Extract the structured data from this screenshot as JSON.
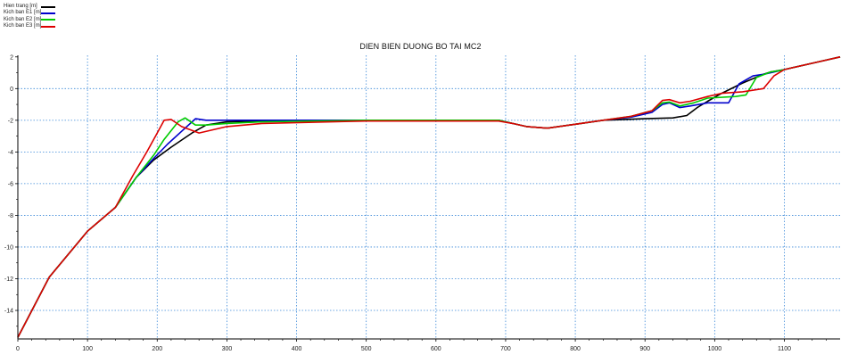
{
  "chart_data": {
    "type": "line",
    "title": "DIEN BIEN DUONG BO TAI MC2",
    "xlabel": "",
    "ylabel": "",
    "xlim": [
      0,
      1180
    ],
    "ylim": [
      -15.8,
      2.1
    ],
    "x_ticks": [
      0,
      100,
      200,
      300,
      400,
      500,
      600,
      700,
      800,
      900,
      1000,
      1100
    ],
    "y_ticks": [
      2,
      0,
      -2,
      -4,
      -6,
      -8,
      -10,
      -12,
      -14
    ],
    "grid": true,
    "legend_position": "top-left",
    "series": [
      {
        "name": "Hien trang  [m]",
        "color": "#000000",
        "points": [
          [
            0,
            -15.7
          ],
          [
            45,
            -11.9
          ],
          [
            100,
            -9.0
          ],
          [
            140,
            -7.5
          ],
          [
            170,
            -5.6
          ],
          [
            195,
            -4.5
          ],
          [
            220,
            -3.7
          ],
          [
            250,
            -2.8
          ],
          [
            270,
            -2.3
          ],
          [
            300,
            -2.1
          ],
          [
            350,
            -2.05
          ],
          [
            500,
            -2.0
          ],
          [
            690,
            -2.0
          ],
          [
            710,
            -2.2
          ],
          [
            730,
            -2.4
          ],
          [
            760,
            -2.5
          ],
          [
            800,
            -2.25
          ],
          [
            840,
            -2.0
          ],
          [
            900,
            -1.9
          ],
          [
            940,
            -1.85
          ],
          [
            960,
            -1.7
          ],
          [
            975,
            -1.2
          ],
          [
            990,
            -0.8
          ],
          [
            1010,
            -0.3
          ],
          [
            1040,
            0.35
          ],
          [
            1070,
            0.9
          ],
          [
            1080,
            1.05
          ],
          [
            1100,
            1.2
          ],
          [
            1150,
            1.7
          ],
          [
            1180,
            2.0
          ]
        ]
      },
      {
        "name": "Kich ban E1 [m]",
        "color": "#0000cc",
        "points": [
          [
            0,
            -15.7
          ],
          [
            45,
            -11.9
          ],
          [
            100,
            -9.0
          ],
          [
            140,
            -7.5
          ],
          [
            170,
            -5.6
          ],
          [
            195,
            -4.4
          ],
          [
            215,
            -3.5
          ],
          [
            240,
            -2.5
          ],
          [
            255,
            -1.9
          ],
          [
            270,
            -2.0
          ],
          [
            300,
            -2.0
          ],
          [
            400,
            -2.0
          ],
          [
            500,
            -2.0
          ],
          [
            690,
            -2.0
          ],
          [
            710,
            -2.2
          ],
          [
            730,
            -2.4
          ],
          [
            760,
            -2.5
          ],
          [
            800,
            -2.25
          ],
          [
            840,
            -2.0
          ],
          [
            880,
            -1.8
          ],
          [
            910,
            -1.5
          ],
          [
            925,
            -1.0
          ],
          [
            935,
            -0.9
          ],
          [
            950,
            -1.2
          ],
          [
            965,
            -1.1
          ],
          [
            990,
            -0.9
          ],
          [
            1020,
            -0.9
          ],
          [
            1035,
            0.3
          ],
          [
            1055,
            0.8
          ],
          [
            1070,
            0.9
          ],
          [
            1090,
            1.1
          ],
          [
            1100,
            1.2
          ],
          [
            1150,
            1.7
          ],
          [
            1180,
            2.0
          ]
        ]
      },
      {
        "name": "Kich ban E2 [m]",
        "color": "#00cc00",
        "points": [
          [
            0,
            -15.7
          ],
          [
            45,
            -11.9
          ],
          [
            100,
            -9.0
          ],
          [
            140,
            -7.5
          ],
          [
            170,
            -5.6
          ],
          [
            195,
            -4.2
          ],
          [
            210,
            -3.2
          ],
          [
            230,
            -2.1
          ],
          [
            240,
            -1.85
          ],
          [
            255,
            -2.3
          ],
          [
            270,
            -2.3
          ],
          [
            300,
            -2.2
          ],
          [
            350,
            -2.1
          ],
          [
            500,
            -2.0
          ],
          [
            690,
            -2.0
          ],
          [
            710,
            -2.2
          ],
          [
            730,
            -2.4
          ],
          [
            760,
            -2.5
          ],
          [
            800,
            -2.25
          ],
          [
            840,
            -2.0
          ],
          [
            880,
            -1.75
          ],
          [
            910,
            -1.4
          ],
          [
            925,
            -0.9
          ],
          [
            935,
            -0.85
          ],
          [
            950,
            -1.1
          ],
          [
            970,
            -0.9
          ],
          [
            990,
            -0.6
          ],
          [
            1030,
            -0.5
          ],
          [
            1045,
            -0.4
          ],
          [
            1060,
            0.7
          ],
          [
            1080,
            1.05
          ],
          [
            1095,
            1.15
          ],
          [
            1100,
            1.2
          ],
          [
            1150,
            1.7
          ],
          [
            1180,
            2.0
          ]
        ]
      },
      {
        "name": "Kich ban E3 [m]",
        "color": "#dd0000",
        "points": [
          [
            0,
            -15.7
          ],
          [
            45,
            -11.9
          ],
          [
            100,
            -9.0
          ],
          [
            140,
            -7.5
          ],
          [
            165,
            -5.5
          ],
          [
            185,
            -4.0
          ],
          [
            200,
            -2.8
          ],
          [
            210,
            -2.0
          ],
          [
            220,
            -1.95
          ],
          [
            235,
            -2.4
          ],
          [
            260,
            -2.8
          ],
          [
            300,
            -2.4
          ],
          [
            350,
            -2.2
          ],
          [
            500,
            -2.05
          ],
          [
            690,
            -2.05
          ],
          [
            710,
            -2.2
          ],
          [
            730,
            -2.4
          ],
          [
            760,
            -2.5
          ],
          [
            800,
            -2.25
          ],
          [
            840,
            -2.0
          ],
          [
            880,
            -1.75
          ],
          [
            910,
            -1.4
          ],
          [
            925,
            -0.75
          ],
          [
            935,
            -0.7
          ],
          [
            950,
            -0.9
          ],
          [
            965,
            -0.8
          ],
          [
            990,
            -0.5
          ],
          [
            1010,
            -0.3
          ],
          [
            1040,
            -0.2
          ],
          [
            1070,
            0.0
          ],
          [
            1085,
            0.8
          ],
          [
            1100,
            1.2
          ],
          [
            1150,
            1.7
          ],
          [
            1180,
            2.0
          ]
        ]
      }
    ]
  }
}
